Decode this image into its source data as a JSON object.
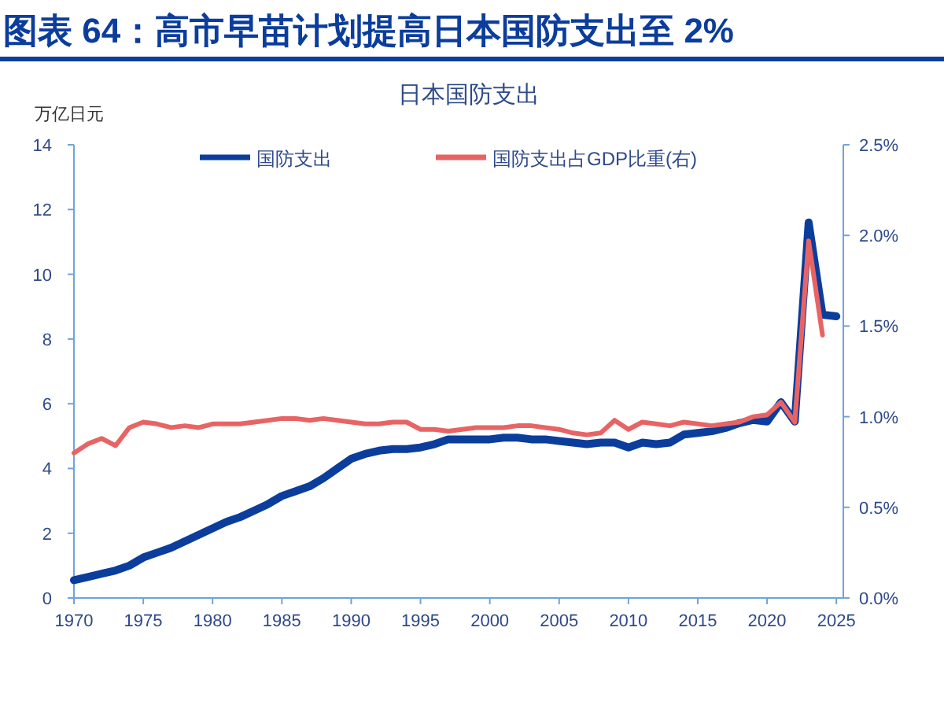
{
  "chart_data": {
    "type": "line",
    "title": "图表 64：高市早苗计划提高日本国防支出至 2%",
    "subtitle": "日本国防支出",
    "ylabel": "万亿日元",
    "x": [
      1970,
      1971,
      1972,
      1973,
      1974,
      1975,
      1976,
      1977,
      1978,
      1979,
      1980,
      1981,
      1982,
      1983,
      1984,
      1985,
      1986,
      1987,
      1988,
      1989,
      1990,
      1991,
      1992,
      1993,
      1994,
      1995,
      1996,
      1997,
      1998,
      1999,
      2000,
      2001,
      2002,
      2003,
      2004,
      2005,
      2006,
      2007,
      2008,
      2009,
      2010,
      2011,
      2012,
      2013,
      2014,
      2015,
      2016,
      2017,
      2018,
      2019,
      2020,
      2021,
      2022,
      2023,
      2024,
      2025
    ],
    "series": [
      {
        "name": "国防支出",
        "color": "#0b3d9c",
        "values": [
          0.55,
          0.65,
          0.75,
          0.85,
          1.0,
          1.25,
          1.4,
          1.55,
          1.75,
          1.95,
          2.15,
          2.35,
          2.5,
          2.7,
          2.9,
          3.15,
          3.3,
          3.45,
          3.7,
          4.0,
          4.3,
          4.45,
          4.55,
          4.6,
          4.6,
          4.65,
          4.75,
          4.9,
          4.9,
          4.9,
          4.9,
          4.95,
          4.95,
          4.9,
          4.9,
          4.85,
          4.8,
          4.75,
          4.8,
          4.8,
          4.65,
          4.8,
          4.75,
          4.8,
          5.05,
          5.1,
          5.15,
          5.25,
          5.4,
          5.5,
          5.45,
          6.05,
          5.45,
          11.6,
          8.75,
          8.7
        ]
      },
      {
        "name": "国防支出占GDP比重(右)",
        "color": "#e86464",
        "axis": "y2",
        "values": [
          0.8,
          0.85,
          0.88,
          0.84,
          0.94,
          0.97,
          0.96,
          0.94,
          0.95,
          0.94,
          0.96,
          0.96,
          0.96,
          0.97,
          0.98,
          0.99,
          0.99,
          0.98,
          0.99,
          0.98,
          0.97,
          0.96,
          0.96,
          0.97,
          0.97,
          0.93,
          0.93,
          0.92,
          0.93,
          0.94,
          0.94,
          0.94,
          0.95,
          0.95,
          0.94,
          0.93,
          0.91,
          0.9,
          0.91,
          0.98,
          0.93,
          0.97,
          0.96,
          0.95,
          0.97,
          0.96,
          0.95,
          0.96,
          0.97,
          1.0,
          1.01,
          1.08,
          0.97,
          1.97,
          1.45,
          null
        ]
      }
    ],
    "xlim": [
      1970,
      2025.5
    ],
    "xticks": [
      1970,
      1975,
      1980,
      1985,
      1990,
      1995,
      2000,
      2005,
      2010,
      2015,
      2020,
      2025
    ],
    "ylim": [
      0,
      14
    ],
    "yticks": [
      0,
      2,
      4,
      6,
      8,
      10,
      12,
      14
    ],
    "y2lim": [
      0,
      2.5
    ],
    "y2ticks": [
      {
        "value": 0,
        "label": "0.0%"
      },
      {
        "value": 0.5,
        "label": "0.5%"
      },
      {
        "value": 1,
        "label": "1.0%"
      },
      {
        "value": 1.5,
        "label": "1.5%"
      },
      {
        "value": 2,
        "label": "2.0%"
      },
      {
        "value": 2.5,
        "label": "2.5%"
      }
    ],
    "legend": "top",
    "grid": false,
    "marker": "none",
    "line_style": "solid"
  }
}
